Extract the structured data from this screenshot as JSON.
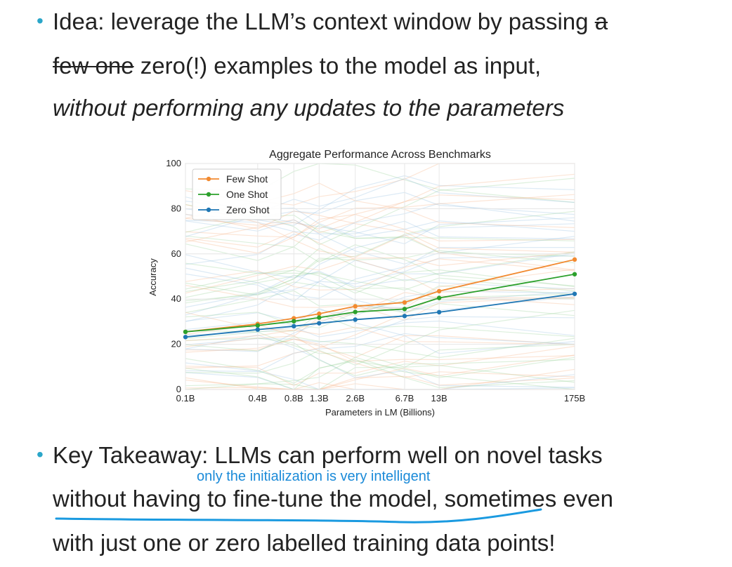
{
  "slide": {
    "bullet1": {
      "part1": "Idea: leverage the LLM’s context window by passing ",
      "strike1": "a",
      "strike2": "few one",
      "part2": " zero(!) examples to the model as input,",
      "italic_line": "without performing any updates to the parameters"
    },
    "bullet2": {
      "line1": "Key Takeaway: LLMs can perform well on novel tasks",
      "line2": "without having to fine-tune the model, sometimes even",
      "line3": "with just one or zero labelled training data points!"
    },
    "handwritten_note": "only the initialization is very intelligent",
    "colors": {
      "bullet": "#2aa6c9",
      "note": "#1a8ad8",
      "underline": "#1a9ae0"
    }
  },
  "chart_data": {
    "type": "line",
    "title": "Aggregate Performance Across Benchmarks",
    "xlabel": "Parameters in LM (Billions)",
    "ylabel": "Accuracy",
    "x": [
      0.1,
      0.4,
      0.8,
      1.3,
      2.6,
      6.7,
      13,
      175
    ],
    "x_tick_labels": [
      "0.1B",
      "0.4B",
      "0.8B",
      "1.3B",
      "2.6B",
      "6.7B",
      "13B",
      "175B"
    ],
    "y_ticks": [
      0,
      20,
      40,
      60,
      80,
      100
    ],
    "ylim": [
      0,
      100
    ],
    "x_scale": "log",
    "grid": true,
    "legend_position": "top-left",
    "series": [
      {
        "name": "Few Shot",
        "color": "#f28a30",
        "values": [
          25.5,
          29,
          31.5,
          33.5,
          36.8,
          38.5,
          43.5,
          57.5
        ]
      },
      {
        "name": "One Shot",
        "color": "#2ca02c",
        "values": [
          25.5,
          28.3,
          30.2,
          31.8,
          34.3,
          35.6,
          40.5,
          51
        ]
      },
      {
        "name": "Zero Shot",
        "color": "#1f77b4",
        "values": [
          23.2,
          26.5,
          28,
          29.3,
          30.9,
          32.5,
          34.2,
          42.3
        ]
      }
    ]
  }
}
